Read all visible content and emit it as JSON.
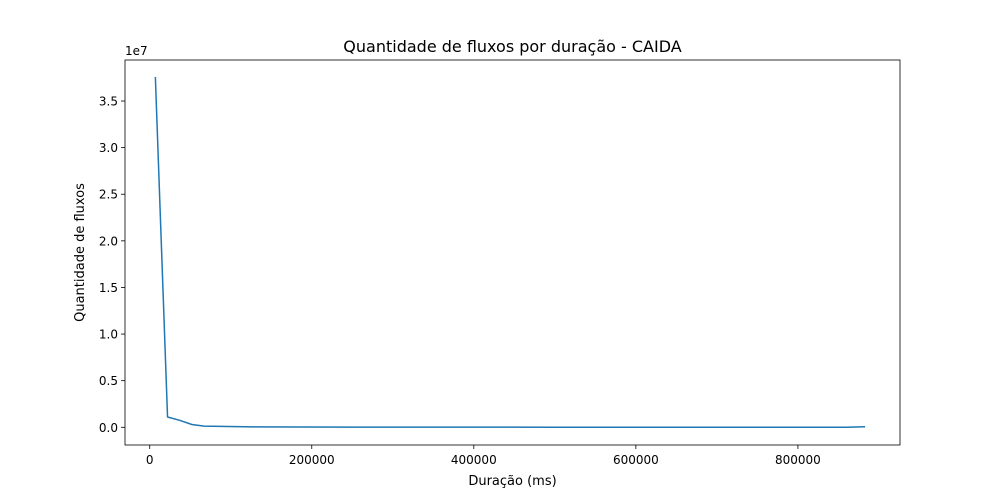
{
  "chart_data": {
    "type": "line",
    "title": "Quantidade de fluxos por duração - CAIDA",
    "xlabel": "Duração (ms)",
    "ylabel": "Quantidade de fluxos",
    "y_offset_label": "1e7",
    "y_scale": 10000000,
    "xlim": [
      -30500,
      926000
    ],
    "ylim": [
      -1900000,
      39400000
    ],
    "x_ticks": [
      0,
      200000,
      400000,
      600000,
      800000
    ],
    "x_tick_labels": [
      "0",
      "200000",
      "400000",
      "600000",
      "800000"
    ],
    "y_ticks": [
      0,
      5000000,
      10000000,
      15000000,
      20000000,
      25000000,
      30000000,
      35000000
    ],
    "y_tick_labels": [
      "0.0",
      "0.5",
      "1.0",
      "1.5",
      "2.0",
      "2.5",
      "3.0",
      "3.5"
    ],
    "grid": false,
    "legend": "none",
    "line_color": "#1f77b4",
    "series": [
      {
        "x": [
          7000,
          22000,
          37000,
          52000,
          67000,
          97000,
          127000,
          187000,
          247000,
          307000,
          400000,
          500000,
          600000,
          700000,
          800000,
          860000,
          882000
        ],
        "y": [
          37500000,
          1100000,
          750000,
          300000,
          120000,
          80000,
          50000,
          30000,
          20000,
          15000,
          12000,
          10000,
          8000,
          7000,
          6000,
          5000,
          50000
        ]
      }
    ]
  }
}
